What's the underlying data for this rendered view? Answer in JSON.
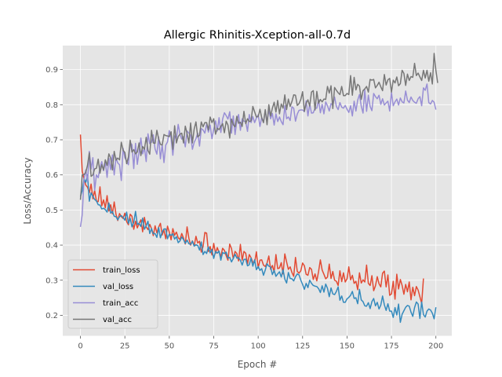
{
  "chart_data": {
    "type": "line",
    "title": "Allergic Rhinitis-Xception-all-0.7d",
    "xlabel": "Epoch #",
    "ylabel": "Loss/Accuracy",
    "xlim": [
      -9.95,
      208.95
    ],
    "ylim": [
      0.1415,
      0.9685
    ],
    "x_ticks": [
      0,
      25,
      50,
      75,
      100,
      125,
      150,
      175,
      200
    ],
    "y_ticks": [
      0.2,
      0.3,
      0.4,
      0.5,
      0.6,
      0.7,
      0.8,
      0.9
    ],
    "grid": true,
    "legend_position": "lower-left",
    "x_step": 1,
    "series": [
      {
        "name": "train_loss",
        "color": "#E24A33",
        "values": [
          0.715,
          0.611,
          0.589,
          0.571,
          0.565,
          0.549,
          0.574,
          0.532,
          0.556,
          0.525,
          0.524,
          0.566,
          0.512,
          0.529,
          0.506,
          0.541,
          0.497,
          0.515,
          0.489,
          0.523,
          0.488,
          0.47,
          0.49,
          0.481,
          0.476,
          0.491,
          0.467,
          0.458,
          0.488,
          0.482,
          0.445,
          0.468,
          0.449,
          0.462,
          0.472,
          0.438,
          0.479,
          0.452,
          0.444,
          0.459,
          0.447,
          0.427,
          0.455,
          0.435,
          0.451,
          0.462,
          0.429,
          0.443,
          0.418,
          0.454,
          0.437,
          0.415,
          0.447,
          0.428,
          0.437,
          0.421,
          0.416,
          0.433,
          0.42,
          0.403,
          0.452,
          0.42,
          0.4,
          0.412,
          0.398,
          0.425,
          0.406,
          0.411,
          0.38,
          0.396,
          0.436,
          0.434,
          0.382,
          0.396,
          0.372,
          0.405,
          0.376,
          0.393,
          0.379,
          0.368,
          0.391,
          0.385,
          0.37,
          0.357,
          0.403,
          0.39,
          0.361,
          0.382,
          0.376,
          0.355,
          0.402,
          0.357,
          0.382,
          0.377,
          0.346,
          0.373,
          0.364,
          0.351,
          0.35,
          0.381,
          0.335,
          0.357,
          0.358,
          0.343,
          0.339,
          0.349,
          0.369,
          0.331,
          0.342,
          0.323,
          0.373,
          0.333,
          0.335,
          0.35,
          0.318,
          0.375,
          0.352,
          0.331,
          0.338,
          0.322,
          0.311,
          0.365,
          0.325,
          0.32,
          0.327,
          0.349,
          0.341,
          0.317,
          0.314,
          0.336,
          0.331,
          0.302,
          0.318,
          0.298,
          0.325,
          0.358,
          0.329,
          0.317,
          0.304,
          0.309,
          0.346,
          0.305,
          0.325,
          0.3,
          0.297,
          0.285,
          0.327,
          0.296,
          0.321,
          0.295,
          0.304,
          0.338,
          0.301,
          0.314,
          0.291,
          0.297,
          0.273,
          0.321,
          0.292,
          0.301,
          0.295,
          0.343,
          0.291,
          0.285,
          0.313,
          0.27,
          0.284,
          0.31,
          0.29,
          0.281,
          0.32,
          0.326,
          0.281,
          0.315,
          0.257,
          0.261,
          0.297,
          0.246,
          0.317,
          0.275,
          0.302,
          0.285,
          0.26,
          0.288,
          0.267,
          0.295,
          0.244,
          0.28,
          0.256,
          0.282,
          0.272,
          0.253,
          0.234,
          0.305
        ]
      },
      {
        "name": "val_loss",
        "color": "#348ABD",
        "values": [
          0.538,
          0.555,
          0.588,
          0.579,
          0.6,
          0.525,
          0.549,
          0.539,
          0.53,
          0.526,
          0.515,
          0.514,
          0.503,
          0.505,
          0.501,
          0.494,
          0.52,
          0.491,
          0.496,
          0.482,
          0.481,
          0.472,
          0.481,
          0.484,
          0.479,
          0.471,
          0.494,
          0.462,
          0.476,
          0.452,
          0.465,
          0.496,
          0.459,
          0.462,
          0.453,
          0.477,
          0.445,
          0.455,
          0.468,
          0.433,
          0.447,
          0.432,
          0.433,
          0.422,
          0.45,
          0.421,
          0.437,
          0.446,
          0.446,
          0.418,
          0.431,
          0.428,
          0.432,
          0.417,
          0.424,
          0.407,
          0.412,
          0.423,
          0.416,
          0.405,
          0.414,
          0.404,
          0.402,
          0.411,
          0.397,
          0.401,
          0.399,
          0.386,
          0.409,
          0.373,
          0.382,
          0.376,
          0.395,
          0.378,
          0.388,
          0.362,
          0.382,
          0.377,
          0.383,
          0.357,
          0.379,
          0.376,
          0.38,
          0.363,
          0.365,
          0.352,
          0.362,
          0.374,
          0.363,
          0.364,
          0.357,
          0.343,
          0.359,
          0.36,
          0.341,
          0.344,
          0.363,
          0.34,
          0.358,
          0.33,
          0.339,
          0.328,
          0.333,
          0.314,
          0.329,
          0.347,
          0.34,
          0.338,
          0.316,
          0.328,
          0.311,
          0.318,
          0.324,
          0.309,
          0.33,
          0.303,
          0.292,
          0.322,
          0.305,
          0.304,
          0.298,
          0.31,
          0.318,
          0.315,
          0.3,
          0.288,
          0.274,
          0.291,
          0.279,
          0.3,
          0.291,
          0.285,
          0.283,
          0.282,
          0.276,
          0.265,
          0.284,
          0.266,
          0.289,
          0.277,
          0.253,
          0.278,
          0.261,
          0.259,
          0.268,
          0.281,
          0.243,
          0.255,
          0.237,
          0.237,
          0.247,
          0.251,
          0.257,
          0.268,
          0.248,
          0.25,
          0.233,
          0.274,
          0.244,
          0.239,
          0.227,
          0.226,
          0.236,
          0.219,
          0.239,
          0.248,
          0.227,
          0.237,
          0.218,
          0.229,
          0.255,
          0.23,
          0.214,
          0.233,
          0.212,
          0.212,
          0.194,
          0.222,
          0.201,
          0.232,
          0.18,
          0.203,
          0.213,
          0.223,
          0.228,
          0.226,
          0.209,
          0.197,
          0.222,
          0.238,
          0.232,
          0.191,
          0.238,
          0.202,
          0.195,
          0.212,
          0.218,
          0.215,
          0.206,
          0.19,
          0.223
        ]
      },
      {
        "name": "train_acc",
        "color": "#988ED5",
        "values": [
          0.452,
          0.486,
          0.587,
          0.614,
          0.581,
          0.667,
          0.617,
          0.649,
          0.556,
          0.6,
          0.592,
          0.621,
          0.638,
          0.612,
          0.637,
          0.593,
          0.647,
          0.615,
          0.657,
          0.6,
          0.649,
          0.634,
          0.629,
          0.584,
          0.676,
          0.649,
          0.639,
          0.629,
          0.692,
          0.686,
          0.618,
          0.69,
          0.63,
          0.666,
          0.705,
          0.66,
          0.677,
          0.638,
          0.717,
          0.689,
          0.693,
          0.714,
          0.674,
          0.659,
          0.708,
          0.646,
          0.686,
          0.635,
          0.685,
          0.694,
          0.726,
          0.705,
          0.656,
          0.711,
          0.703,
          0.744,
          0.716,
          0.702,
          0.709,
          0.68,
          0.725,
          0.719,
          0.713,
          0.673,
          0.693,
          0.703,
          0.719,
          0.682,
          0.732,
          0.728,
          0.719,
          0.745,
          0.722,
          0.742,
          0.703,
          0.73,
          0.754,
          0.725,
          0.763,
          0.721,
          0.759,
          0.777,
          0.769,
          0.759,
          0.78,
          0.719,
          0.768,
          0.715,
          0.754,
          0.772,
          0.727,
          0.76,
          0.753,
          0.751,
          0.724,
          0.772,
          0.749,
          0.766,
          0.749,
          0.762,
          0.771,
          0.738,
          0.764,
          0.749,
          0.784,
          0.751,
          0.785,
          0.76,
          0.775,
          0.742,
          0.774,
          0.752,
          0.765,
          0.752,
          0.743,
          0.797,
          0.76,
          0.765,
          0.755,
          0.794,
          0.79,
          0.753,
          0.773,
          0.784,
          0.785,
          0.785,
          0.78,
          0.811,
          0.768,
          0.802,
          0.776,
          0.777,
          0.79,
          0.79,
          0.814,
          0.777,
          0.801,
          0.774,
          0.808,
          0.797,
          0.782,
          0.803,
          0.799,
          0.822,
          0.795,
          0.786,
          0.806,
          0.793,
          0.79,
          0.798,
          0.787,
          0.778,
          0.797,
          0.768,
          0.81,
          0.782,
          0.813,
          0.829,
          0.796,
          0.776,
          0.842,
          0.781,
          0.827,
          0.795,
          0.783,
          0.832,
          0.823,
          0.817,
          0.827,
          0.801,
          0.817,
          0.799,
          0.805,
          0.81,
          0.782,
          0.835,
          0.797,
          0.808,
          0.816,
          0.799,
          0.819,
          0.808,
          0.805,
          0.839,
          0.813,
          0.806,
          0.822,
          0.812,
          0.807,
          0.804,
          0.817,
          0.823,
          0.797,
          0.848,
          0.841,
          0.859,
          0.806,
          0.802,
          0.812,
          0.807,
          0.786
        ]
      },
      {
        "name": "val_acc",
        "color": "#777777",
        "values": [
          0.529,
          0.6,
          0.601,
          0.607,
          0.628,
          0.663,
          0.596,
          0.6,
          0.617,
          0.619,
          0.645,
          0.605,
          0.629,
          0.614,
          0.643,
          0.627,
          0.66,
          0.648,
          0.614,
          0.667,
          0.642,
          0.648,
          0.643,
          0.693,
          0.67,
          0.664,
          0.632,
          0.651,
          0.699,
          0.665,
          0.672,
          0.66,
          0.665,
          0.691,
          0.655,
          0.681,
          0.673,
          0.707,
          0.67,
          0.659,
          0.727,
          0.691,
          0.69,
          0.727,
          0.703,
          0.687,
          0.685,
          0.715,
          0.712,
          0.711,
          0.709,
          0.723,
          0.673,
          0.74,
          0.691,
          0.709,
          0.716,
          0.719,
          0.691,
          0.739,
          0.718,
          0.691,
          0.748,
          0.691,
          0.731,
          0.751,
          0.708,
          0.713,
          0.751,
          0.737,
          0.749,
          0.749,
          0.728,
          0.765,
          0.749,
          0.76,
          0.716,
          0.733,
          0.729,
          0.738,
          0.746,
          0.72,
          0.753,
          0.742,
          0.705,
          0.759,
          0.743,
          0.737,
          0.767,
          0.747,
          0.75,
          0.738,
          0.781,
          0.746,
          0.76,
          0.752,
          0.754,
          0.795,
          0.78,
          0.765,
          0.766,
          0.787,
          0.763,
          0.749,
          0.786,
          0.743,
          0.8,
          0.768,
          0.79,
          0.807,
          0.779,
          0.812,
          0.774,
          0.802,
          0.79,
          0.828,
          0.786,
          0.816,
          0.795,
          0.809,
          0.828,
          0.827,
          0.798,
          0.803,
          0.815,
          0.837,
          0.781,
          0.804,
          0.814,
          0.796,
          0.836,
          0.84,
          0.785,
          0.838,
          0.804,
          0.815,
          0.808,
          0.816,
          0.815,
          0.852,
          0.833,
          0.854,
          0.789,
          0.849,
          0.841,
          0.834,
          0.829,
          0.852,
          0.826,
          0.826,
          0.832,
          0.829,
          0.883,
          0.827,
          0.878,
          0.842,
          0.858,
          0.853,
          0.815,
          0.84,
          0.845,
          0.852,
          0.836,
          0.872,
          0.87,
          0.872,
          0.848,
          0.855,
          0.864,
          0.851,
          0.84,
          0.886,
          0.856,
          0.871,
          0.875,
          0.836,
          0.87,
          0.862,
          0.879,
          0.854,
          0.86,
          0.898,
          0.889,
          0.855,
          0.887,
          0.869,
          0.88,
          0.878,
          0.918,
          0.883,
          0.89,
          0.879,
          0.869,
          0.898,
          0.876,
          0.898,
          0.867,
          0.891,
          0.859,
          0.946,
          0.898,
          0.862
        ]
      }
    ]
  }
}
